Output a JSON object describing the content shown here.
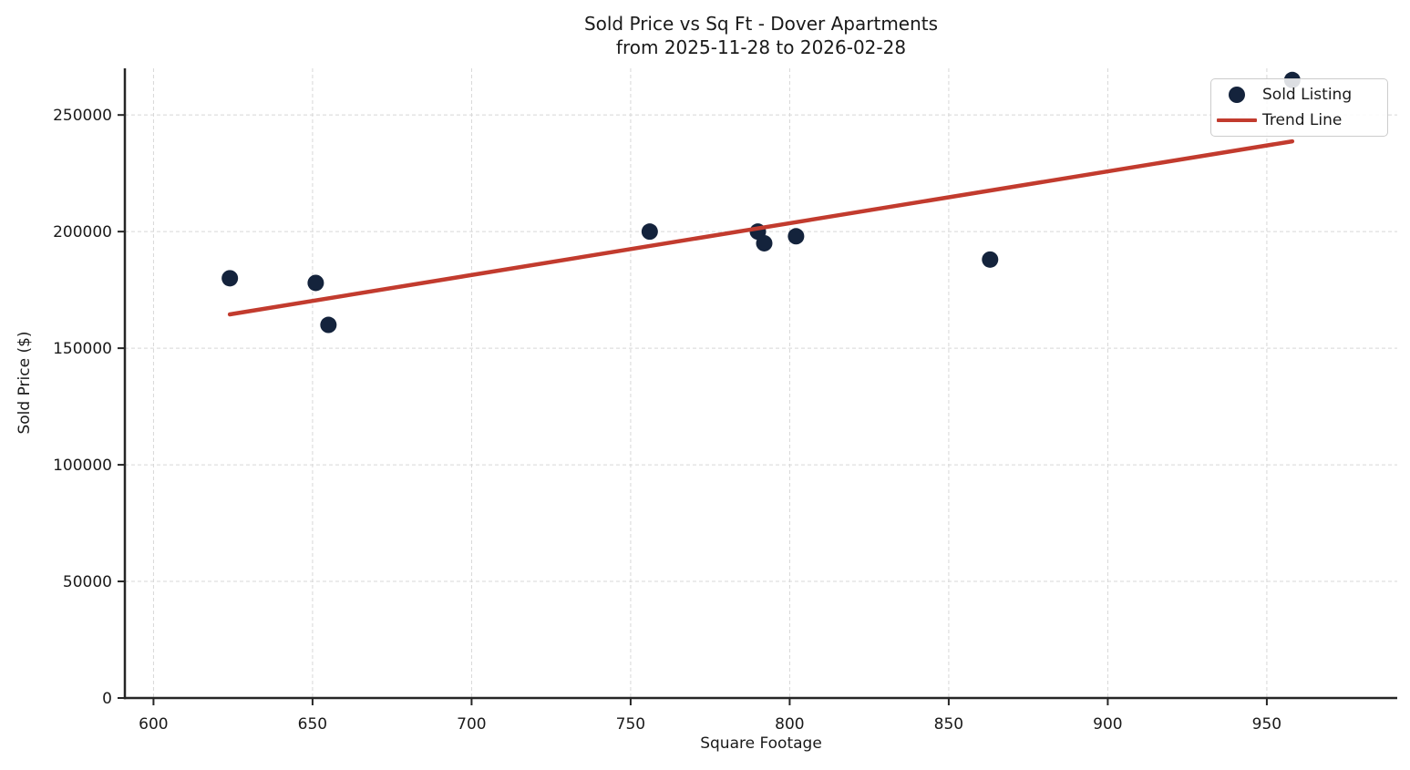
{
  "chart_data": {
    "type": "scatter",
    "title": "Sold Price vs Sq Ft - Dover Apartments",
    "subtitle": "from 2025-11-28 to 2026-02-28",
    "xlabel": "Square Footage",
    "ylabel": "Sold Price ($)",
    "xlim": [
      591,
      991
    ],
    "ylim": [
      0,
      270000
    ],
    "x_ticks": [
      600,
      650,
      700,
      750,
      800,
      850,
      900,
      950
    ],
    "y_ticks": [
      0,
      50000,
      100000,
      150000,
      200000,
      250000
    ],
    "grid": "dashed-both-axes",
    "legend": {
      "position": "upper right",
      "entries": [
        {
          "label": "Sold Listing",
          "marker": "dot"
        },
        {
          "label": "Trend Line",
          "marker": "line"
        }
      ]
    },
    "series": [
      {
        "name": "Sold Listing",
        "type": "scatter",
        "color": "#14233c",
        "points": [
          {
            "x": 624,
            "y": 180000
          },
          {
            "x": 651,
            "y": 178000
          },
          {
            "x": 655,
            "y": 160000
          },
          {
            "x": 756,
            "y": 200000
          },
          {
            "x": 790,
            "y": 200000
          },
          {
            "x": 792,
            "y": 195000
          },
          {
            "x": 802,
            "y": 198000
          },
          {
            "x": 863,
            "y": 188000
          },
          {
            "x": 958,
            "y": 265000
          }
        ]
      },
      {
        "name": "Trend Line",
        "type": "line",
        "color": "#c23b2e",
        "points": [
          {
            "x": 624,
            "y": 164500
          },
          {
            "x": 958,
            "y": 238700
          }
        ]
      }
    ],
    "colors": {
      "point": "#14233c",
      "trend": "#c23b2e",
      "grid": "#d7d7d7",
      "axis": "#262626",
      "text": "#1a1a1a",
      "legend_border": "#cccccc",
      "background": "#ffffff"
    }
  }
}
